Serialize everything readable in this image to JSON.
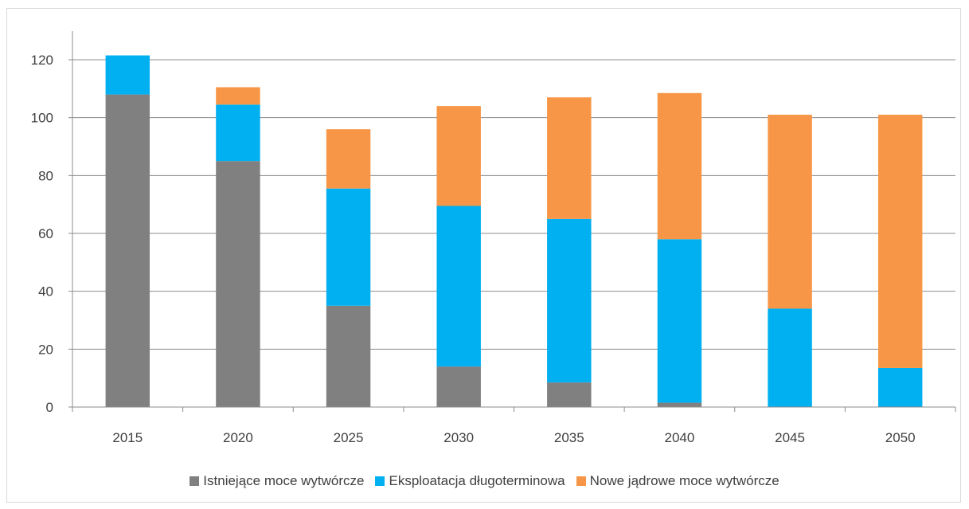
{
  "chart_data": {
    "type": "bar",
    "stacked": true,
    "categories": [
      "2015",
      "2020",
      "2025",
      "2030",
      "2035",
      "2040",
      "2045",
      "2050"
    ],
    "series": [
      {
        "name": "Istniejące moce wytwórcze",
        "color": "#808080",
        "values": [
          108,
          85,
          35,
          14,
          8.5,
          1.5,
          0,
          0
        ]
      },
      {
        "name": "Eksploatacja długoterminowa",
        "color": "#00b0f0",
        "values": [
          13.5,
          19.5,
          40.5,
          55.5,
          56.5,
          56.5,
          34,
          13.5
        ]
      },
      {
        "name": "Nowe jądrowe moce wytwórcze",
        "color": "#f79646",
        "values": [
          0,
          6,
          20.5,
          34.5,
          42,
          50.5,
          67,
          87.5
        ]
      }
    ],
    "yticks": [
      "0",
      "20",
      "40",
      "60",
      "80",
      "100",
      "120"
    ],
    "ylim": [
      0,
      130
    ],
    "grid": true,
    "legend_position": "bottom"
  }
}
